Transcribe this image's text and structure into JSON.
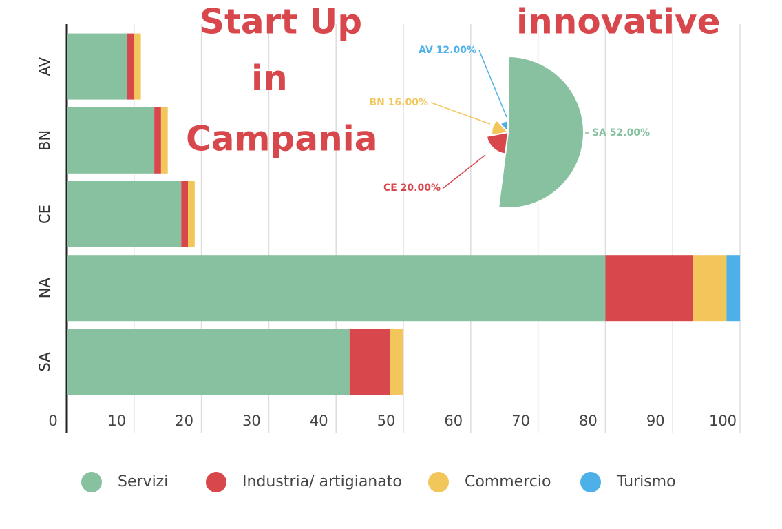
{
  "title_parts": [
    "Start Up",
    "innovative",
    "in",
    "Campania"
  ],
  "chart_data": [
    {
      "type": "stacked-barh",
      "categories": [
        "AV",
        "BN",
        "CE",
        "NA",
        "SA"
      ],
      "series": [
        {
          "name": "Servizi",
          "color": "#87c1a0",
          "values": [
            9,
            13,
            17,
            80,
            42
          ]
        },
        {
          "name": "Industria/ artigianato",
          "color": "#d8474c",
          "values": [
            1,
            1,
            1,
            13,
            6
          ]
        },
        {
          "name": "Commercio",
          "color": "#f3c65c",
          "values": [
            1,
            1,
            1,
            5,
            2
          ]
        },
        {
          "name": "Turismo",
          "color": "#4eb0e8",
          "values": [
            0,
            0,
            0,
            2,
            0
          ]
        }
      ],
      "xlim": [
        0,
        100
      ],
      "xticks": [
        0,
        10,
        20,
        30,
        40,
        50,
        60,
        70,
        80,
        90,
        100
      ],
      "grid": true,
      "legend": "bottom"
    },
    {
      "type": "pie",
      "categories": [
        "SA",
        "CE",
        "BN",
        "AV"
      ],
      "values": [
        52,
        20,
        16,
        12
      ],
      "value_labels": [
        "SA 52.00%",
        "CE 20.00%",
        "BN 16.00%",
        "AV 12.00%"
      ],
      "colors": [
        "#87c1a0",
        "#d8474c",
        "#f3c65c",
        "#4eb0e8"
      ]
    }
  ]
}
